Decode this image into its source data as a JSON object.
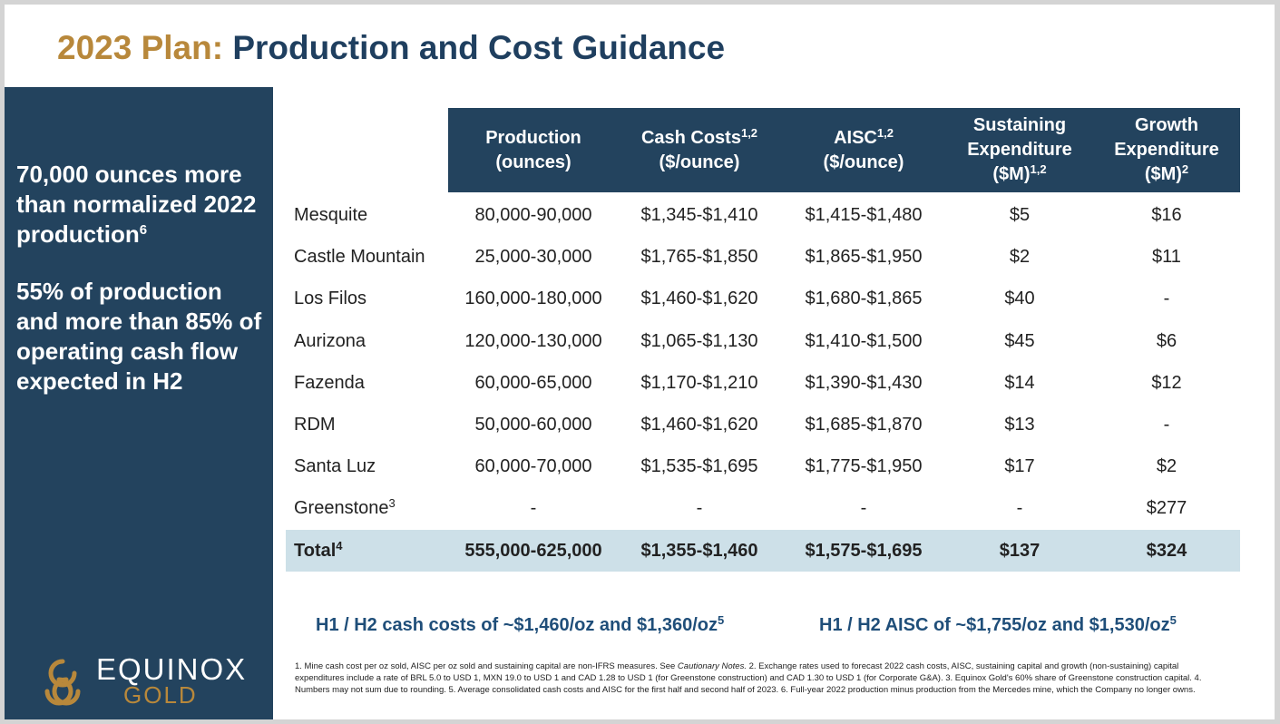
{
  "title": {
    "accent": "2023 Plan:",
    "main": " Production and Cost Guidance"
  },
  "sidebar": {
    "para1": {
      "text": "70,000 ounces more than normalized 2022 production",
      "sup": "6"
    },
    "para2": "55% of production and more than 85% of operating cash flow expected in H2"
  },
  "logo": {
    "word1": "EQUINOX",
    "word2": "GOLD"
  },
  "table": {
    "headers": [
      {
        "lines": [
          "Production",
          "(ounces)"
        ],
        "sup": ""
      },
      {
        "lines": [
          "Cash Costs",
          "($/ounce)"
        ],
        "sup": "1,2"
      },
      {
        "lines": [
          "AISC",
          "($/ounce)"
        ],
        "sup": "1,2"
      },
      {
        "lines": [
          "Sustaining",
          "Expenditure",
          "($M)"
        ],
        "sup": "1,2"
      },
      {
        "lines": [
          "Growth",
          "Expenditure",
          "($M)"
        ],
        "sup": "2"
      }
    ],
    "rows": [
      {
        "name": "Mesquite",
        "sup": "",
        "values": [
          "80,000-90,000",
          "$1,345-$1,410",
          "$1,415-$1,480",
          "$5",
          "$16"
        ]
      },
      {
        "name": "Castle Mountain",
        "sup": "",
        "values": [
          "25,000-30,000",
          "$1,765-$1,850",
          "$1,865-$1,950",
          "$2",
          "$11"
        ]
      },
      {
        "name": "Los Filos",
        "sup": "",
        "values": [
          "160,000-180,000",
          "$1,460-$1,620",
          "$1,680-$1,865",
          "$40",
          "-"
        ]
      },
      {
        "name": "Aurizona",
        "sup": "",
        "values": [
          "120,000-130,000",
          "$1,065-$1,130",
          "$1,410-$1,500",
          "$45",
          "$6"
        ]
      },
      {
        "name": "Fazenda",
        "sup": "",
        "values": [
          "60,000-65,000",
          "$1,170-$1,210",
          "$1,390-$1,430",
          "$14",
          "$12"
        ]
      },
      {
        "name": "RDM",
        "sup": "",
        "values": [
          "50,000-60,000",
          "$1,460-$1,620",
          "$1,685-$1,870",
          "$13",
          "-"
        ]
      },
      {
        "name": "Santa Luz",
        "sup": "",
        "values": [
          "60,000-70,000",
          "$1,535-$1,695",
          "$1,775-$1,950",
          "$17",
          "$2"
        ]
      },
      {
        "name": "Greenstone",
        "sup": "3",
        "values": [
          "-",
          "-",
          "-",
          "-",
          "$277"
        ]
      }
    ],
    "total": {
      "name": "Total",
      "sup": "4",
      "values": [
        "555,000-625,000",
        "$1,355-$1,460",
        "$1,575-$1,695",
        "$137",
        "$324"
      ]
    }
  },
  "callouts": {
    "left": {
      "text": "H1 / H2 cash costs of ~$1,460/oz and $1,360/oz",
      "sup": "5"
    },
    "right": {
      "text": "H1 / H2 AISC of ~$1,755/oz and $1,530/oz",
      "sup": "5"
    }
  },
  "footnotes": {
    "part1": "1. Mine cash cost per oz sold, AISC per oz sold and sustaining capital are non-IFRS measures. See ",
    "italic": "Cautionary Notes.",
    "part2": "  2. Exchange rates used to forecast 2022 cash costs, AISC, sustaining capital and growth (non-sustaining) capital expenditures include a rate of BRL 5.0 to USD 1, MXN 19.0 to USD 1 and CAD 1.28 to USD 1 (for Greenstone construction) and CAD 1.30 to USD 1 (for Corporate G&A). 3. Equinox Gold's 60% share of Greenstone construction capital. 4. Numbers may not sum due to rounding. 5. Average consolidated cash costs and AISC for the first half and second half of 2023. 6. Full-year 2022 production minus production from the Mercedes mine, which the Company no longer owns."
  },
  "colors": {
    "navy": "#23435e",
    "gold": "#b8883b",
    "total_row": "#cde0e8",
    "callout": "#1f4e79"
  }
}
